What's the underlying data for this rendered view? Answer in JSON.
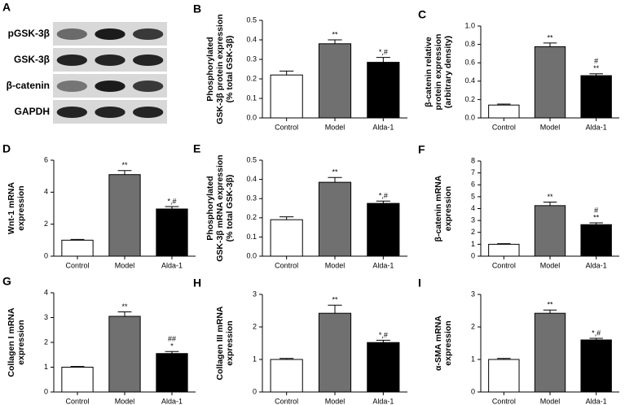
{
  "chart_data": [
    {
      "type": "blot",
      "panel": "A",
      "rows": [
        "pGSK-3β",
        "GSK-3β",
        "β-catenin",
        "GAPDH"
      ]
    },
    {
      "type": "bar",
      "panel": "B",
      "ylabel": [
        "Phosphorylated",
        "GSK-3β protein expression",
        "(% total GSK-3β)"
      ],
      "categories": [
        "Control",
        "Model",
        "Alda-1"
      ],
      "values": [
        0.22,
        0.38,
        0.285
      ],
      "errors": [
        0.02,
        0.02,
        0.025
      ],
      "annotations": [
        null,
        [
          "**"
        ],
        [
          "*,#"
        ]
      ],
      "colors": [
        "#ffffff",
        "#707070",
        "#000000"
      ],
      "ylim": [
        0,
        0.5
      ],
      "yticks": [
        {
          "value": 0,
          "label": "0.0"
        },
        0.1,
        0.2,
        0.3,
        0.4,
        0.5
      ]
    },
    {
      "type": "bar",
      "panel": "C",
      "ylabel": [
        "β-catenin relative",
        "protein expression",
        "(arbitrary density)"
      ],
      "categories": [
        "Control",
        "Model",
        "Alda-1"
      ],
      "values": [
        0.14,
        0.775,
        0.46
      ],
      "errors": [
        0.01,
        0.04,
        0.02
      ],
      "annotations": [
        null,
        [
          "**"
        ],
        [
          "#",
          "**"
        ]
      ],
      "colors": [
        "#ffffff",
        "#707070",
        "#000000"
      ],
      "ylim": [
        0,
        1
      ],
      "yticks": [
        {
          "value": 0,
          "label": "0.0"
        },
        0.2,
        0.4,
        0.6,
        0.8,
        {
          "value": 1,
          "label": "1.0"
        }
      ]
    },
    {
      "type": "bar",
      "panel": "D",
      "ylabel": [
        "Wnt-1 mRNA",
        "expression"
      ],
      "categories": [
        "Control",
        "Model",
        "Alda-1"
      ],
      "values": [
        1.0,
        5.1,
        2.95
      ],
      "errors": [
        0.05,
        0.25,
        0.15
      ],
      "annotations": [
        null,
        [
          "**"
        ],
        [
          "*,#"
        ]
      ],
      "colors": [
        "#ffffff",
        "#707070",
        "#000000"
      ],
      "ylim": [
        0,
        6
      ],
      "yticks": [
        0,
        2,
        4,
        6
      ]
    },
    {
      "type": "bar",
      "panel": "E",
      "ylabel": [
        "Phosphorylated",
        "GSK-3β mRNA expression",
        "(% total GSK-3β)"
      ],
      "categories": [
        "Control",
        "Model",
        "Alda-1"
      ],
      "values": [
        0.19,
        0.385,
        0.275
      ],
      "errors": [
        0.015,
        0.025,
        0.012
      ],
      "annotations": [
        null,
        [
          "**"
        ],
        [
          "*,#"
        ]
      ],
      "colors": [
        "#ffffff",
        "#707070",
        "#000000"
      ],
      "ylim": [
        0,
        0.5
      ],
      "yticks": [
        {
          "value": 0,
          "label": "0.0"
        },
        0.1,
        0.2,
        0.3,
        0.4,
        0.5
      ]
    },
    {
      "type": "bar",
      "panel": "F",
      "ylabel": [
        "β-catenin mRNA",
        "expression"
      ],
      "categories": [
        "Control",
        "Model",
        "Alda-1"
      ],
      "values": [
        1.0,
        4.25,
        2.65
      ],
      "errors": [
        0.05,
        0.3,
        0.15
      ],
      "annotations": [
        null,
        [
          "**"
        ],
        [
          "#",
          "**"
        ]
      ],
      "colors": [
        "#ffffff",
        "#707070",
        "#000000"
      ],
      "ylim": [
        0,
        8
      ],
      "yticks": [
        0,
        1,
        2,
        3,
        4,
        5,
        6,
        7,
        8
      ]
    },
    {
      "type": "bar",
      "panel": "G",
      "ylabel": [
        "Collagen I mRNA",
        "expression"
      ],
      "categories": [
        "Control",
        "Model",
        "Alda-1"
      ],
      "values": [
        1.0,
        3.05,
        1.55
      ],
      "errors": [
        0.03,
        0.18,
        0.08
      ],
      "annotations": [
        null,
        [
          "**"
        ],
        [
          "##",
          "*"
        ]
      ],
      "colors": [
        "#ffffff",
        "#707070",
        "#000000"
      ],
      "ylim": [
        0,
        4
      ],
      "yticks": [
        0,
        1,
        2,
        3,
        4
      ]
    },
    {
      "type": "bar",
      "panel": "H",
      "ylabel": [
        "Collagen III mRNA",
        "expression"
      ],
      "categories": [
        "Control",
        "Model",
        "Alda-1"
      ],
      "values": [
        1.0,
        2.42,
        1.52
      ],
      "errors": [
        0.03,
        0.25,
        0.07
      ],
      "annotations": [
        null,
        [
          "**"
        ],
        [
          "*,#"
        ]
      ],
      "colors": [
        "#ffffff",
        "#707070",
        "#000000"
      ],
      "ylim": [
        0,
        3
      ],
      "yticks": [
        0,
        1,
        2,
        3
      ]
    },
    {
      "type": "bar",
      "panel": "I",
      "ylabel": [
        "α-SMA mRNA",
        "expression"
      ],
      "categories": [
        "Control",
        "Model",
        "Alda-1"
      ],
      "values": [
        1.0,
        2.42,
        1.6
      ],
      "errors": [
        0.03,
        0.1,
        0.05
      ],
      "annotations": [
        null,
        [
          "**"
        ],
        [
          "*,#"
        ]
      ],
      "colors": [
        "#ffffff",
        "#707070",
        "#000000"
      ],
      "ylim": [
        0,
        3
      ],
      "yticks": [
        0,
        1,
        2,
        3
      ]
    }
  ]
}
